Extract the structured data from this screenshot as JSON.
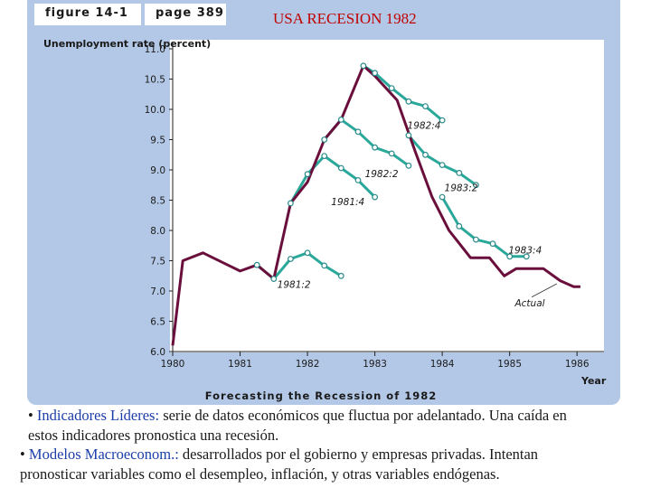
{
  "header": {
    "figure_label": "figure 14-1",
    "page_label": "page 389"
  },
  "overlay_title": "USA RECESION 1982",
  "chart_data": {
    "type": "line",
    "title": "Forecasting the Recession of 1982",
    "ylabel": "Unemployment rate (percent)",
    "xlabel": "Year",
    "xlim": [
      1980,
      1986.4
    ],
    "ylim": [
      6.0,
      11.0
    ],
    "xticks": [
      "1980",
      "1981",
      "1982",
      "1983",
      "1984",
      "1985",
      "1986"
    ],
    "yticks": [
      "6.0",
      "6.5",
      "7.0",
      "7.5",
      "8.0",
      "8.5",
      "9.0",
      "9.5",
      "10.0",
      "10.5",
      "11.0"
    ],
    "grid": false,
    "colors": {
      "actual": "#6a0f3c",
      "forecast": "#2aa89a",
      "marker_fill": "#ffffff",
      "marker_stroke": "#2a8a8a"
    },
    "series": [
      {
        "name": "Actual",
        "kind": "actual",
        "points": [
          [
            1980.0,
            6.1
          ],
          [
            1980.15,
            7.5
          ],
          [
            1980.45,
            7.63
          ],
          [
            1981.0,
            7.33
          ],
          [
            1981.25,
            7.43
          ],
          [
            1981.5,
            7.2
          ],
          [
            1981.75,
            8.45
          ],
          [
            1982.0,
            8.8
          ],
          [
            1982.25,
            9.5
          ],
          [
            1982.5,
            9.83
          ],
          [
            1982.83,
            10.72
          ],
          [
            1983.0,
            10.55
          ],
          [
            1983.33,
            10.15
          ],
          [
            1983.6,
            9.3
          ],
          [
            1983.85,
            8.55
          ],
          [
            1984.1,
            8.0
          ],
          [
            1984.42,
            7.55
          ],
          [
            1984.7,
            7.55
          ],
          [
            1984.92,
            7.25
          ],
          [
            1985.1,
            7.37
          ],
          [
            1985.5,
            7.37
          ],
          [
            1985.75,
            7.17
          ],
          [
            1985.95,
            7.07
          ],
          [
            1986.05,
            7.07
          ]
        ]
      },
      {
        "name": "1981:2",
        "kind": "forecast",
        "points": [
          [
            1981.25,
            7.43
          ],
          [
            1981.5,
            7.2
          ],
          [
            1981.75,
            7.53
          ],
          [
            1982.0,
            7.63
          ],
          [
            1982.25,
            7.42
          ],
          [
            1982.5,
            7.25
          ]
        ]
      },
      {
        "name": "1981:4",
        "kind": "forecast",
        "points": [
          [
            1981.75,
            8.45
          ],
          [
            1982.0,
            8.93
          ],
          [
            1982.25,
            9.23
          ],
          [
            1982.5,
            9.03
          ],
          [
            1982.75,
            8.83
          ],
          [
            1983.0,
            8.55
          ]
        ]
      },
      {
        "name": "1982:2",
        "kind": "forecast",
        "points": [
          [
            1982.25,
            9.5
          ],
          [
            1982.5,
            9.83
          ],
          [
            1982.75,
            9.63
          ],
          [
            1983.0,
            9.37
          ],
          [
            1983.25,
            9.27
          ],
          [
            1983.5,
            9.07
          ]
        ]
      },
      {
        "name": "1982:4",
        "kind": "forecast",
        "points": [
          [
            1982.83,
            10.72
          ],
          [
            1983.0,
            10.6
          ],
          [
            1983.25,
            10.35
          ],
          [
            1983.5,
            10.13
          ],
          [
            1983.75,
            10.05
          ],
          [
            1984.0,
            9.82
          ]
        ]
      },
      {
        "name": "1983:2",
        "kind": "forecast",
        "points": [
          [
            1983.5,
            9.57
          ],
          [
            1983.75,
            9.25
          ],
          [
            1984.0,
            9.08
          ],
          [
            1984.25,
            8.95
          ],
          [
            1984.5,
            8.75
          ]
        ]
      },
      {
        "name": "1983:4",
        "kind": "forecast",
        "points": [
          [
            1984.0,
            8.55
          ],
          [
            1984.25,
            8.07
          ],
          [
            1984.5,
            7.85
          ],
          [
            1984.75,
            7.78
          ],
          [
            1985.0,
            7.57
          ],
          [
            1985.25,
            7.57
          ]
        ]
      }
    ],
    "annotations": [
      {
        "text": "1981:2",
        "x": 1981.8,
        "y": 7.05
      },
      {
        "text": "1981:4",
        "x": 1982.6,
        "y": 8.42
      },
      {
        "text": "1982:2",
        "x": 1983.1,
        "y": 8.88
      },
      {
        "text": "1982:4",
        "x": 1983.73,
        "y": 9.68
      },
      {
        "text": "1983:2",
        "x": 1984.28,
        "y": 8.65
      },
      {
        "text": "1983:4",
        "x": 1985.23,
        "y": 7.62
      },
      {
        "text": "Actual",
        "x": 1985.3,
        "y": 6.75
      }
    ]
  },
  "bullets": [
    {
      "term": "Indicadores Líderes:",
      "lines": [
        " serie de datos económicos que fluctua por adelantado. Una caída en",
        " estos indicadores pronostica una recesión."
      ]
    },
    {
      "term": "Modelos Macroeconom.:",
      "lines": [
        " desarrollados por el gobierno y empresas privadas. Intentan",
        "pronosticar  variables como el desempleo, inflación, y otras variables endógenas."
      ]
    }
  ]
}
